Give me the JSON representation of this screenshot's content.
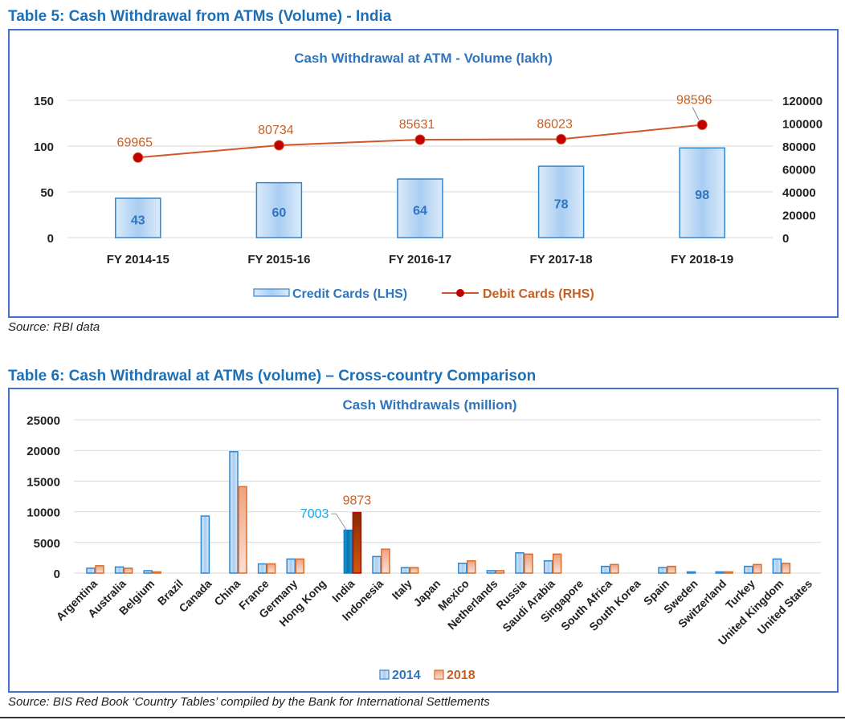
{
  "table5": {
    "heading": "Table 5: Cash Withdrawal from ATMs (Volume) - India",
    "source": "Source: RBI data"
  },
  "table6": {
    "heading": "Table 6: Cash Withdrawal at ATMs (volume) – Cross-country Comparison",
    "source": "Source: BIS Red Book ‘Country Tables’ compiled by the Bank for International Settlements"
  },
  "colors": {
    "blue": "#2E86D1",
    "blue_text": "#2F75C0",
    "orange": "#D66F2E",
    "orange_text": "#C65F22",
    "dark_red": "#C00000",
    "india_2014_label": "#19A9E6",
    "frame": "#4472C4"
  },
  "chart_data": [
    {
      "type": "bar+line",
      "title": "Cash Withdrawal at ATM - Volume (lakh)",
      "categories": [
        "FY 2014-15",
        "FY 2015-16",
        "FY 2016-17",
        "FY 2017-18",
        "FY 2018-19"
      ],
      "series": [
        {
          "name": "Credit Cards (LHS)",
          "type": "bar",
          "axis": "left",
          "values": [
            43,
            60,
            64,
            78,
            98
          ]
        },
        {
          "name": "Debit Cards (RHS)",
          "type": "line",
          "axis": "right",
          "values": [
            69965,
            80734,
            85631,
            86023,
            98596
          ]
        }
      ],
      "y_left": {
        "min": 0,
        "max": 150,
        "ticks": [
          0,
          50,
          100,
          150
        ]
      },
      "y_right": {
        "min": 0,
        "max": 120000,
        "ticks": [
          0,
          20000,
          40000,
          60000,
          80000,
          100000,
          120000
        ]
      },
      "grid": true,
      "legend": "bottom"
    },
    {
      "type": "bar",
      "title": "Cash Withdrawals (million)",
      "categories": [
        "Argentina",
        "Australia",
        "Belgium",
        "Brazil",
        "Canada",
        "China",
        "France",
        "Germany",
        "Hong Kong",
        "India",
        "Indonesia",
        "Italy",
        "Japan",
        "Mexico",
        "Netherlands",
        "Russia",
        "Saudi Arabia",
        "Singapore",
        "South Africa",
        "South Korea",
        "Spain",
        "Sweden",
        "Switzerland",
        "Turkey",
        "United Kingdom",
        "United States"
      ],
      "series": [
        {
          "name": "2014",
          "values": [
            800,
            1000,
            400,
            0,
            9300,
            19800,
            1500,
            2300,
            0,
            7003,
            2700,
            900,
            0,
            1600,
            400,
            3300,
            2000,
            0,
            1100,
            0,
            900,
            200,
            200,
            1100,
            2300,
            0
          ]
        },
        {
          "name": "2018",
          "values": [
            1200,
            800,
            200,
            0,
            0,
            14100,
            1500,
            2300,
            0,
            9873,
            3900,
            900,
            0,
            2000,
            400,
            3100,
            3100,
            0,
            1400,
            0,
            1100,
            0,
            200,
            1400,
            1600,
            0
          ]
        }
      ],
      "data_labels": [
        {
          "category": "India",
          "series": "2014",
          "text": "7003"
        },
        {
          "category": "India",
          "series": "2018",
          "text": "9873"
        }
      ],
      "y": {
        "min": 0,
        "max": 25000,
        "ticks": [
          0,
          5000,
          10000,
          15000,
          20000,
          25000
        ]
      },
      "grid": true,
      "legend": "bottom"
    }
  ]
}
